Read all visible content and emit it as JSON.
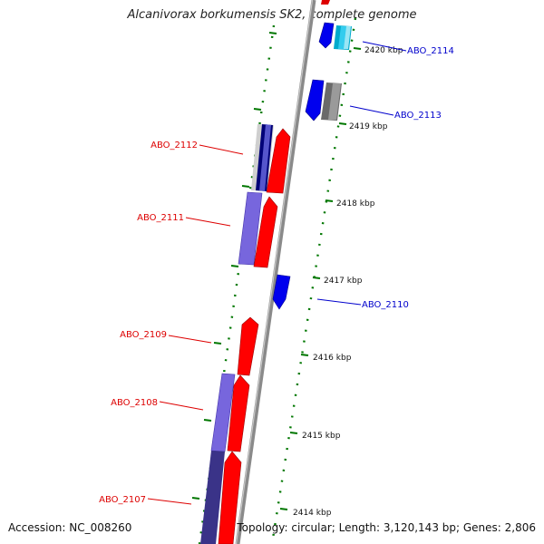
{
  "title": "Alcanivorax borkumensis SK2, complete genome",
  "footer": {
    "accession": "Accession: NC_008260",
    "summary": "Topology: circular; Length: 3,120,143 bp; Genes: 2,806"
  },
  "colors": {
    "forward_gene": "#ff0000",
    "reverse_gene": "#0000ff",
    "backbone": "#8a8a8a",
    "tick": "#007700",
    "label_forward": "#dd0000",
    "label_reverse": "#0000cc"
  },
  "ticks": [
    {
      "label": "2420 kbp"
    },
    {
      "label": "2419 kbp"
    },
    {
      "label": "2418 kbp"
    },
    {
      "label": "2417 kbp"
    },
    {
      "label": "2416 kbp"
    },
    {
      "label": "2415 kbp"
    },
    {
      "label": "2414 kbp"
    }
  ],
  "genes": [
    {
      "label": "ABO_2114",
      "strand": "reverse"
    },
    {
      "label": "ABO_2113",
      "strand": "reverse"
    },
    {
      "label": "ABO_2112",
      "strand": "forward"
    },
    {
      "label": "ABO_2111",
      "strand": "forward"
    },
    {
      "label": "ABO_2110",
      "strand": "reverse"
    },
    {
      "label": "ABO_2109",
      "strand": "forward"
    },
    {
      "label": "ABO_2108",
      "strand": "forward"
    },
    {
      "label": "ABO_2107",
      "strand": "forward"
    }
  ]
}
